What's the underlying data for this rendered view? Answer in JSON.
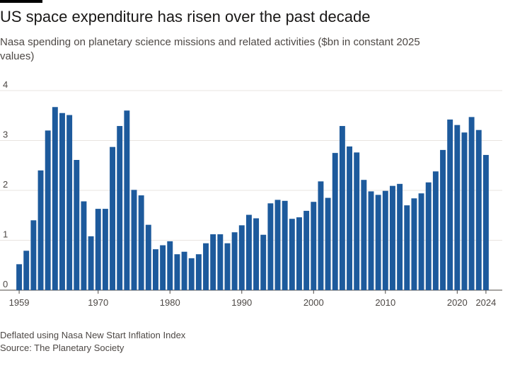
{
  "title": "US space expenditure has risen over the past decade",
  "subtitle": "Nasa spending on planetary science missions and related activities ($bn in constant 2025 values)",
  "footer": {
    "note": "Deflated using Nasa New Start Inflation Index",
    "source": "Source: The Planetary Society"
  },
  "colors": {
    "bar": "#1d5a9c",
    "grid": "#e9e4e0",
    "baseline": "#4d4845",
    "text": "#4d4845"
  },
  "chart_data": {
    "type": "bar",
    "xlabel": "",
    "ylabel": "",
    "ylim": [
      0,
      4
    ],
    "yticks": [
      0,
      1,
      2,
      3,
      4
    ],
    "xticks": [
      1959,
      1970,
      1980,
      1990,
      2000,
      2010,
      2020,
      2024
    ],
    "grid": true,
    "x": [
      1959,
      1960,
      1961,
      1962,
      1963,
      1964,
      1965,
      1966,
      1967,
      1968,
      1969,
      1970,
      1971,
      1972,
      1973,
      1974,
      1975,
      1976,
      1977,
      1978,
      1979,
      1980,
      1981,
      1982,
      1983,
      1984,
      1985,
      1986,
      1987,
      1988,
      1989,
      1990,
      1991,
      1992,
      1993,
      1994,
      1995,
      1996,
      1997,
      1998,
      1999,
      2000,
      2001,
      2002,
      2003,
      2004,
      2005,
      2006,
      2007,
      2008,
      2009,
      2010,
      2011,
      2012,
      2013,
      2014,
      2015,
      2016,
      2017,
      2018,
      2019,
      2020,
      2021,
      2022,
      2023,
      2024
    ],
    "values": [
      0.52,
      0.79,
      1.4,
      2.4,
      3.2,
      3.67,
      3.55,
      3.51,
      2.61,
      1.78,
      1.08,
      1.63,
      1.63,
      2.87,
      3.29,
      3.6,
      2.01,
      1.9,
      1.31,
      0.82,
      0.9,
      0.98,
      0.72,
      0.77,
      0.64,
      0.72,
      0.94,
      1.12,
      1.12,
      0.94,
      1.16,
      1.3,
      1.51,
      1.44,
      1.11,
      1.74,
      1.81,
      1.79,
      1.43,
      1.46,
      1.59,
      1.77,
      2.18,
      1.85,
      2.75,
      3.29,
      2.88,
      2.76,
      2.21,
      1.98,
      1.91,
      1.99,
      2.09,
      2.13,
      1.7,
      1.84,
      1.94,
      2.16,
      2.38,
      2.81,
      3.42,
      3.31,
      3.16,
      3.47,
      3.21,
      2.71
    ]
  }
}
